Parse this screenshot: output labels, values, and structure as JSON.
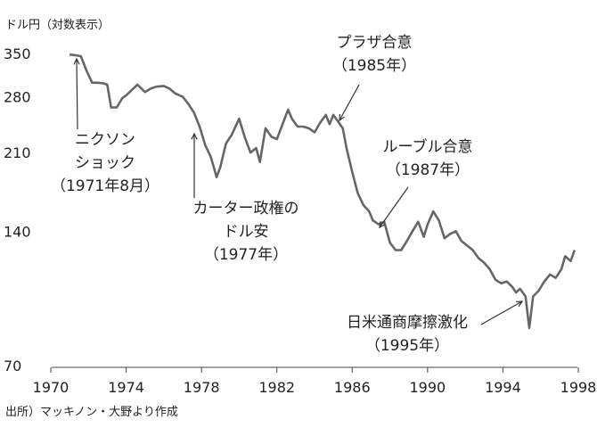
{
  "chart_data": {
    "type": "line",
    "title": "",
    "ylabel": "ドル円（対数表示）",
    "xlabel": "",
    "source": "出所）マッキノン・大野より作成",
    "y_scale": "log",
    "ylim": [
      70,
      350
    ],
    "xlim": [
      1970,
      1998
    ],
    "x_ticks": [
      "1970",
      "1974",
      "1978",
      "1982",
      "1986",
      "1990",
      "1994",
      "1998"
    ],
    "y_ticks": [
      "350",
      "280",
      "210",
      "140",
      "70"
    ],
    "grid": false,
    "series": [
      {
        "name": "",
        "color": "#666666",
        "x": [
          1971.0,
          1971.3,
          1971.6,
          1971.9,
          1972.2,
          1972.5,
          1972.8,
          1973.0,
          1973.2,
          1973.5,
          1973.8,
          1974.0,
          1974.3,
          1974.6,
          1975.0,
          1975.3,
          1975.6,
          1976.0,
          1976.3,
          1976.6,
          1977.0,
          1977.3,
          1977.6,
          1977.9,
          1978.2,
          1978.5,
          1978.8,
          1979.0,
          1979.3,
          1979.6,
          1980.0,
          1980.3,
          1980.6,
          1980.9,
          1981.1,
          1981.4,
          1981.7,
          1982.0,
          1982.3,
          1982.6,
          1982.8,
          1983.1,
          1983.4,
          1983.7,
          1984.0,
          1984.3,
          1984.6,
          1984.8,
          1985.0,
          1985.2,
          1985.5,
          1985.7,
          1986.0,
          1986.3,
          1986.6,
          1986.9,
          1987.1,
          1987.4,
          1987.7,
          1988.0,
          1988.3,
          1988.6,
          1988.9,
          1989.2,
          1989.5,
          1989.8,
          1990.0,
          1990.3,
          1990.6,
          1990.9,
          1991.2,
          1991.5,
          1991.8,
          1992.1,
          1992.4,
          1992.7,
          1993.0,
          1993.3,
          1993.6,
          1993.9,
          1994.2,
          1994.5,
          1994.7,
          1994.9,
          1995.2,
          1995.4,
          1995.6,
          1995.9,
          1996.2,
          1996.5,
          1996.8,
          1997.1,
          1997.3,
          1997.6,
          1997.8
        ],
        "values": [
          348,
          347,
          345,
          320,
          301,
          301,
          300,
          298,
          265,
          265,
          278,
          282,
          290,
          298,
          287,
          292,
          295,
          296,
          292,
          285,
          280,
          270,
          258,
          240,
          218,
          205,
          185,
          195,
          220,
          230,
          250,
          227,
          210,
          215,
          200,
          238,
          228,
          225,
          243,
          262,
          250,
          240,
          240,
          238,
          233,
          245,
          255,
          243,
          255,
          248,
          238,
          215,
          190,
          170,
          160,
          155,
          148,
          145,
          147,
          132,
          127,
          127,
          133,
          140,
          147,
          136,
          145,
          155,
          148,
          135,
          138,
          140,
          133,
          130,
          127,
          122,
          119,
          115,
          109,
          107,
          108,
          105,
          102,
          104,
          100,
          85,
          100,
          103,
          108,
          112,
          110,
          115,
          123,
          120,
          127
        ]
      }
    ],
    "annotations": [
      {
        "id": "nixon",
        "lines": [
          "ニクソン",
          "ショック",
          "（1971年8月）"
        ],
        "x": 1971.6,
        "y": 345
      },
      {
        "id": "carter",
        "lines": [
          "カーター政権の",
          "ドル安",
          "（1977年）"
        ],
        "x": 1977.9,
        "y": 240
      },
      {
        "id": "plaza",
        "lines": [
          "プラザ合意",
          "（1985年）"
        ],
        "x": 1985.0,
        "y": 255
      },
      {
        "id": "louvre",
        "lines": [
          "ルーブル合意",
          "（1987年）"
        ],
        "x": 1987.1,
        "y": 148
      },
      {
        "id": "japan_us",
        "lines": [
          "日米通商摩擦激化",
          "（1995年）"
        ],
        "x": 1995.2,
        "y": 100
      }
    ]
  }
}
